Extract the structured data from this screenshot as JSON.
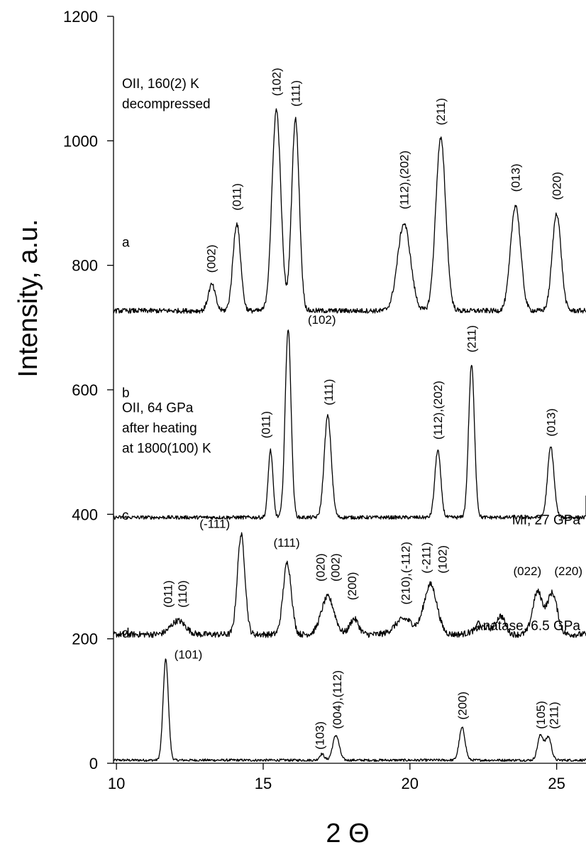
{
  "chart_data": {
    "type": "line",
    "xlabel": "2 Θ",
    "ylabel": "Intensity, a.u.",
    "xlim": [
      9.9,
      26
    ],
    "ylim": [
      0,
      1200
    ],
    "xticks": [
      10,
      15,
      20,
      25
    ],
    "yticks": [
      0,
      200,
      400,
      600,
      800,
      1000,
      1200
    ],
    "grid": false,
    "series": [
      {
        "letter": "a",
        "name": "Anatase, 6.5 GPa",
        "baseline": 5,
        "noise": 2,
        "peaks": [
          {
            "x": 11.68,
            "h": 162,
            "w": 0.09
          },
          {
            "x": 17.0,
            "h": 10,
            "w": 0.08
          },
          {
            "x": 17.48,
            "h": 40,
            "w": 0.11
          },
          {
            "x": 21.78,
            "h": 52,
            "w": 0.1
          },
          {
            "x": 24.45,
            "h": 40,
            "w": 0.1
          },
          {
            "x": 24.72,
            "h": 37,
            "w": 0.1
          }
        ],
        "labels": [
          {
            "text": "(101)",
            "x": 12.45,
            "y": 168,
            "rotate": false
          },
          {
            "text": "(103)",
            "x": 16.92,
            "y": 22,
            "rotate": true
          },
          {
            "text": "(004),(112)",
            "x": 17.52,
            "y": 55,
            "rotate": true
          },
          {
            "text": "(200)",
            "x": 21.78,
            "y": 70,
            "rotate": true
          },
          {
            "text": "(105)",
            "x": 24.45,
            "y": 55,
            "rotate": true
          },
          {
            "text": "(211)",
            "x": 24.9,
            "y": 55,
            "rotate": true
          }
        ]
      },
      {
        "letter": "b",
        "name": "MI, 27 GPa",
        "baseline": 207,
        "noise": 5,
        "peaks": [
          {
            "x": 12.1,
            "h": 22,
            "w": 0.25
          },
          {
            "x": 14.25,
            "h": 160,
            "w": 0.13
          },
          {
            "x": 15.82,
            "h": 115,
            "w": 0.14
          },
          {
            "x": 17.2,
            "h": 60,
            "w": 0.22
          },
          {
            "x": 18.1,
            "h": 25,
            "w": 0.15
          },
          {
            "x": 19.8,
            "h": 25,
            "w": 0.3
          },
          {
            "x": 20.7,
            "h": 80,
            "w": 0.22
          },
          {
            "x": 22.5,
            "h": 12,
            "w": 0.3
          },
          {
            "x": 23.1,
            "h": 28,
            "w": 0.15
          },
          {
            "x": 24.35,
            "h": 68,
            "w": 0.17
          },
          {
            "x": 24.85,
            "h": 66,
            "w": 0.17
          }
        ],
        "labels": [
          {
            "text": "(011)",
            "x": 11.75,
            "y": 250,
            "rotate": true
          },
          {
            "text": "(110)",
            "x": 12.25,
            "y": 250,
            "rotate": true
          },
          {
            "text": "(-111)",
            "x": 13.35,
            "y": 378,
            "rotate": false
          },
          {
            "text": "(111)",
            "x": 15.8,
            "y": 348,
            "rotate": false
          },
          {
            "text": "(020)",
            "x": 16.95,
            "y": 292,
            "rotate": true
          },
          {
            "text": "(002)",
            "x": 17.45,
            "y": 292,
            "rotate": true
          },
          {
            "text": "(200)",
            "x": 18.02,
            "y": 262,
            "rotate": true
          },
          {
            "text": "(210),(-112)",
            "x": 19.85,
            "y": 255,
            "rotate": true
          },
          {
            "text": "(-211)",
            "x": 20.55,
            "y": 305,
            "rotate": true
          },
          {
            "text": "(102)",
            "x": 21.1,
            "y": 305,
            "rotate": true
          },
          {
            "text": "(022)",
            "x": 24.0,
            "y": 302,
            "rotate": false
          },
          {
            "text": "(220)",
            "x": 25.4,
            "y": 302,
            "rotate": false
          }
        ]
      },
      {
        "letter": "c",
        "name": "OII, 64 GPa\nafter heating\nat 1800(100) K",
        "baseline": 395,
        "noise": 3,
        "peaks": [
          {
            "x": 15.25,
            "h": 108,
            "w": 0.08
          },
          {
            "x": 15.85,
            "h": 303,
            "w": 0.1
          },
          {
            "x": 17.2,
            "h": 163,
            "w": 0.12
          },
          {
            "x": 20.95,
            "h": 108,
            "w": 0.1
          },
          {
            "x": 22.1,
            "h": 245,
            "w": 0.1
          },
          {
            "x": 24.8,
            "h": 113,
            "w": 0.11
          }
        ],
        "labels": [
          {
            "text": "(011)",
            "x": 15.08,
            "y": 522,
            "rotate": true
          },
          {
            "text": "(102)",
            "x": 17.0,
            "y": 706,
            "rotate": false
          },
          {
            "text": "(111)",
            "x": 17.22,
            "y": 575,
            "rotate": true
          },
          {
            "text": "(112),(202)",
            "x": 20.95,
            "y": 520,
            "rotate": true
          },
          {
            "text": "(211)",
            "x": 22.1,
            "y": 660,
            "rotate": true
          },
          {
            "text": "(013)",
            "x": 24.8,
            "y": 525,
            "rotate": true
          }
        ]
      },
      {
        "letter": "d",
        "name": "OII, 160(2) K\ndecompressed",
        "baseline": 727,
        "noise": 4,
        "peaks": [
          {
            "x": 13.25,
            "h": 42,
            "w": 0.12
          },
          {
            "x": 14.1,
            "h": 140,
            "w": 0.13
          },
          {
            "x": 15.45,
            "h": 323,
            "w": 0.15
          },
          {
            "x": 16.1,
            "h": 308,
            "w": 0.13
          },
          {
            "x": 19.8,
            "h": 140,
            "w": 0.22
          },
          {
            "x": 21.05,
            "h": 277,
            "w": 0.17
          },
          {
            "x": 23.6,
            "h": 170,
            "w": 0.17
          },
          {
            "x": 25.0,
            "h": 157,
            "w": 0.15
          }
        ],
        "labels": [
          {
            "text": "(002)",
            "x": 13.22,
            "y": 788,
            "rotate": true
          },
          {
            "text": "(011)",
            "x": 14.1,
            "y": 888,
            "rotate": true
          },
          {
            "text": "(102)",
            "x": 15.45,
            "y": 1072,
            "rotate": true
          },
          {
            "text": "(111)",
            "x": 16.1,
            "y": 1055,
            "rotate": true
          },
          {
            "text": "(112),(202)",
            "x": 19.8,
            "y": 890,
            "rotate": true
          },
          {
            "text": "(211)",
            "x": 21.05,
            "y": 1025,
            "rotate": true
          },
          {
            "text": "(013)",
            "x": 23.6,
            "y": 918,
            "rotate": true
          },
          {
            "text": "(020)",
            "x": 25.0,
            "y": 905,
            "rotate": true
          }
        ]
      }
    ]
  }
}
